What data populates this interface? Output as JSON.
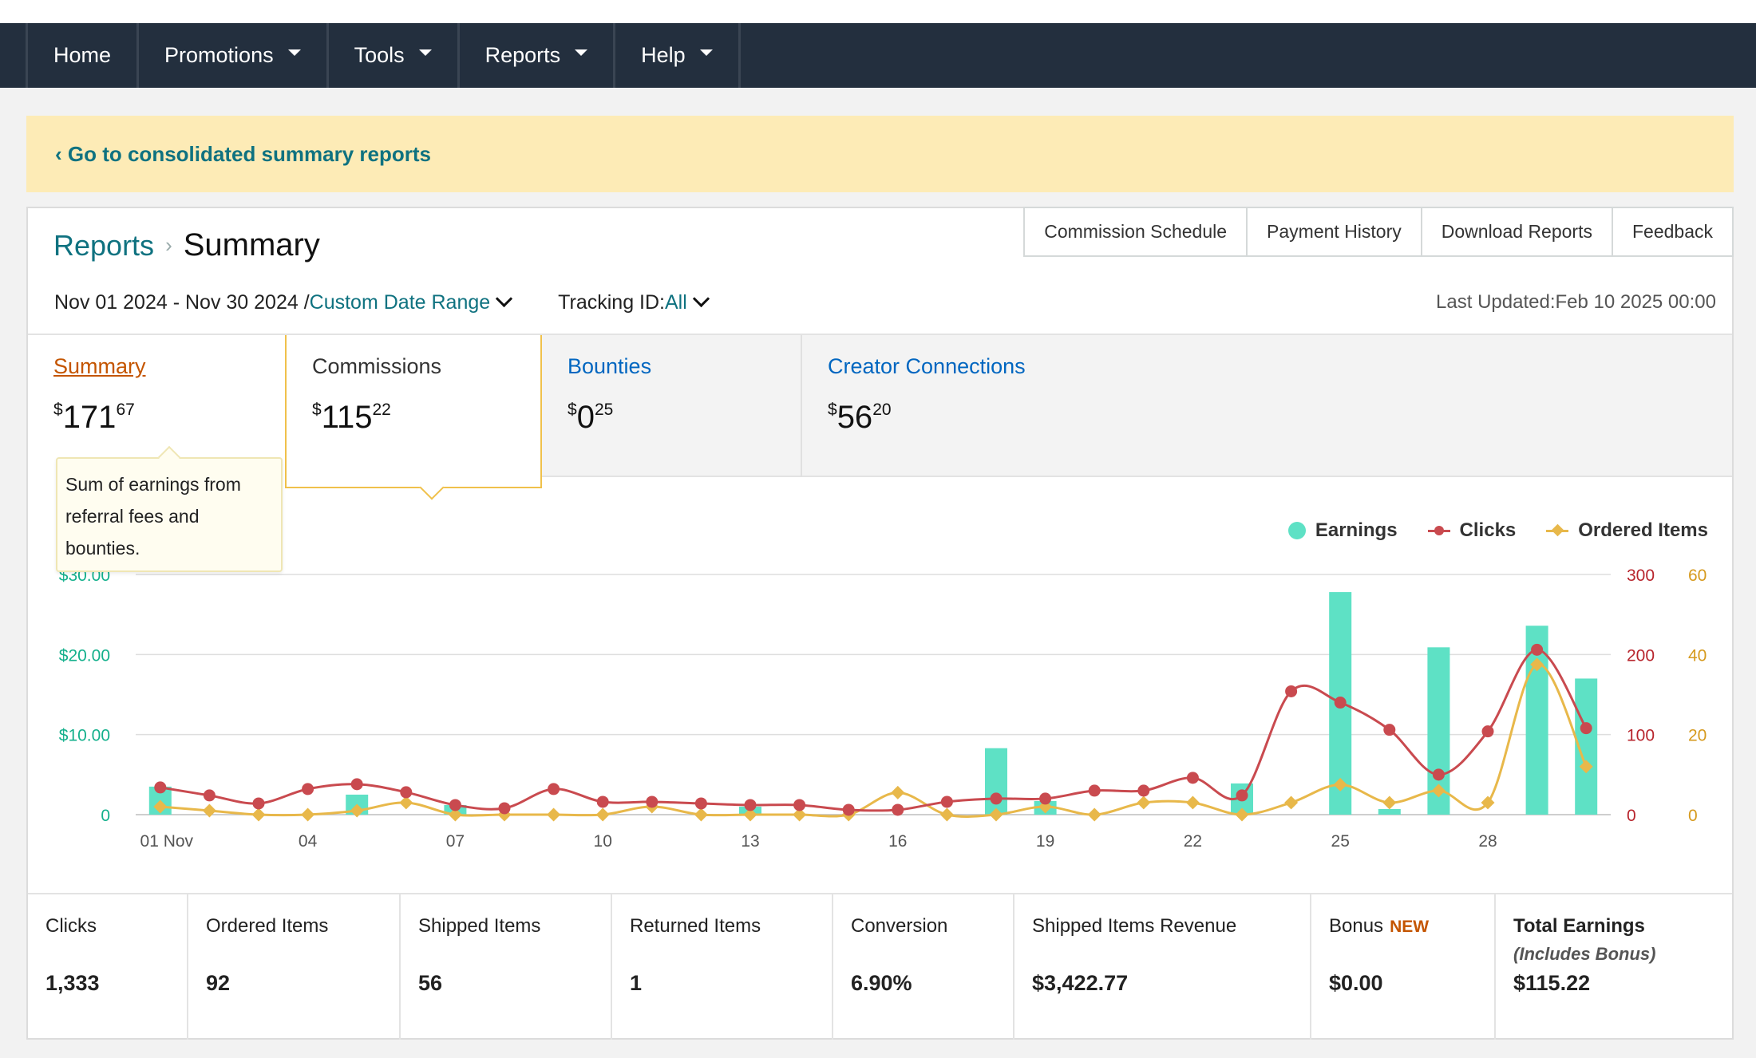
{
  "nav": {
    "items": [
      {
        "label": "Home",
        "dropdown": false
      },
      {
        "label": "Promotions",
        "dropdown": true
      },
      {
        "label": "Tools",
        "dropdown": true
      },
      {
        "label": "Reports",
        "dropdown": true
      },
      {
        "label": "Help",
        "dropdown": true
      }
    ]
  },
  "banner": {
    "link": "‹ Go to consolidated summary reports"
  },
  "breadcrumb": {
    "parent": "Reports",
    "separator": "›",
    "current": "Summary"
  },
  "actions": [
    "Commission Schedule",
    "Payment History",
    "Download Reports",
    "Feedback"
  ],
  "filters": {
    "date_range": "Nov 01 2024 - Nov 30 2024 /",
    "date_range_type": "Custom Date Range",
    "tracking_label": "Tracking ID:",
    "tracking_value": "All",
    "last_updated": "Last Updated:Feb 10 2025 00:00"
  },
  "tabs": {
    "summary": {
      "name": "Summary",
      "dollars": "171",
      "cents": "67"
    },
    "commissions": {
      "name": "Commissions",
      "dollars": "115",
      "cents": "22"
    },
    "bounties": {
      "name": "Bounties",
      "dollars": "0",
      "cents": "25"
    },
    "creator": {
      "name": "Creator Connections",
      "dollars": "56",
      "cents": "20"
    },
    "currency": "$"
  },
  "tooltip": {
    "text": "Sum of earnings from referral fees and bounties."
  },
  "colors": {
    "earnings": "#5ee1c5",
    "clicks": "#c94a4f",
    "ordered": "#e8b84a",
    "link": "#0f7280",
    "nav_bg": "#232f3e"
  },
  "chart_data": {
    "type": "bar+line",
    "legend": [
      "Earnings",
      "Clicks",
      "Ordered Items"
    ],
    "x": [
      1,
      2,
      3,
      4,
      5,
      6,
      7,
      8,
      9,
      10,
      11,
      12,
      13,
      14,
      15,
      16,
      17,
      18,
      19,
      20,
      21,
      22,
      23,
      24,
      25,
      26,
      27,
      28,
      29,
      30
    ],
    "x_tick_labels": {
      "1": "01 Nov",
      "4": "04",
      "7": "07",
      "10": "10",
      "13": "13",
      "16": "16",
      "19": "19",
      "22": "22",
      "25": "25",
      "28": "28"
    },
    "series": [
      {
        "name": "Earnings",
        "kind": "bar",
        "axis": "left",
        "values": [
          3.5,
          0,
          0,
          0,
          2.5,
          0,
          1.2,
          0,
          0,
          0,
          0,
          0,
          1,
          0,
          0,
          0,
          0,
          8.3,
          1.7,
          0,
          0,
          0,
          3.9,
          0,
          27.8,
          0.7,
          20.9,
          0,
          23.6,
          17
        ]
      },
      {
        "name": "Clicks",
        "kind": "line",
        "axis": "right1",
        "values": [
          34,
          24,
          14,
          32,
          38,
          28,
          12,
          8,
          32,
          16,
          16,
          14,
          12,
          12,
          6,
          6,
          16,
          20,
          20,
          30,
          30,
          46,
          24,
          154,
          140,
          106,
          50,
          104,
          206,
          108
        ]
      },
      {
        "name": "Ordered Items",
        "kind": "line",
        "axis": "right2",
        "values": [
          2,
          1,
          0,
          0,
          1,
          3,
          0,
          0,
          0,
          0,
          2,
          0,
          0,
          0,
          0,
          5.5,
          0,
          0,
          2,
          0,
          3,
          3,
          0,
          3,
          7.5,
          3,
          6,
          3,
          37.5,
          12
        ]
      }
    ],
    "axes": {
      "left": {
        "ticks": [
          "0",
          "$10.00",
          "$20.00",
          "$30.00"
        ],
        "range": [
          0,
          30
        ]
      },
      "right1": {
        "ticks": [
          "0",
          "100",
          "200",
          "300"
        ],
        "range": [
          0,
          300
        ]
      },
      "right2": {
        "ticks": [
          "0",
          "20",
          "40",
          "60"
        ],
        "range": [
          0,
          60
        ]
      }
    },
    "grid": true,
    "legend_position": "top-right"
  },
  "stats": [
    {
      "label": "Clicks",
      "value": "1,333"
    },
    {
      "label": "Ordered Items",
      "value": "92"
    },
    {
      "label": "Shipped Items",
      "value": "56"
    },
    {
      "label": "Returned Items",
      "value": "1"
    },
    {
      "label": "Conversion",
      "value": "6.90%"
    },
    {
      "label": "Shipped Items Revenue",
      "value": "$3,422.77"
    },
    {
      "label": "Bonus",
      "badge": "NEW",
      "value": "$0.00"
    },
    {
      "label": "Total Earnings",
      "sublabel": "(Includes Bonus)",
      "value": "$115.22"
    }
  ]
}
